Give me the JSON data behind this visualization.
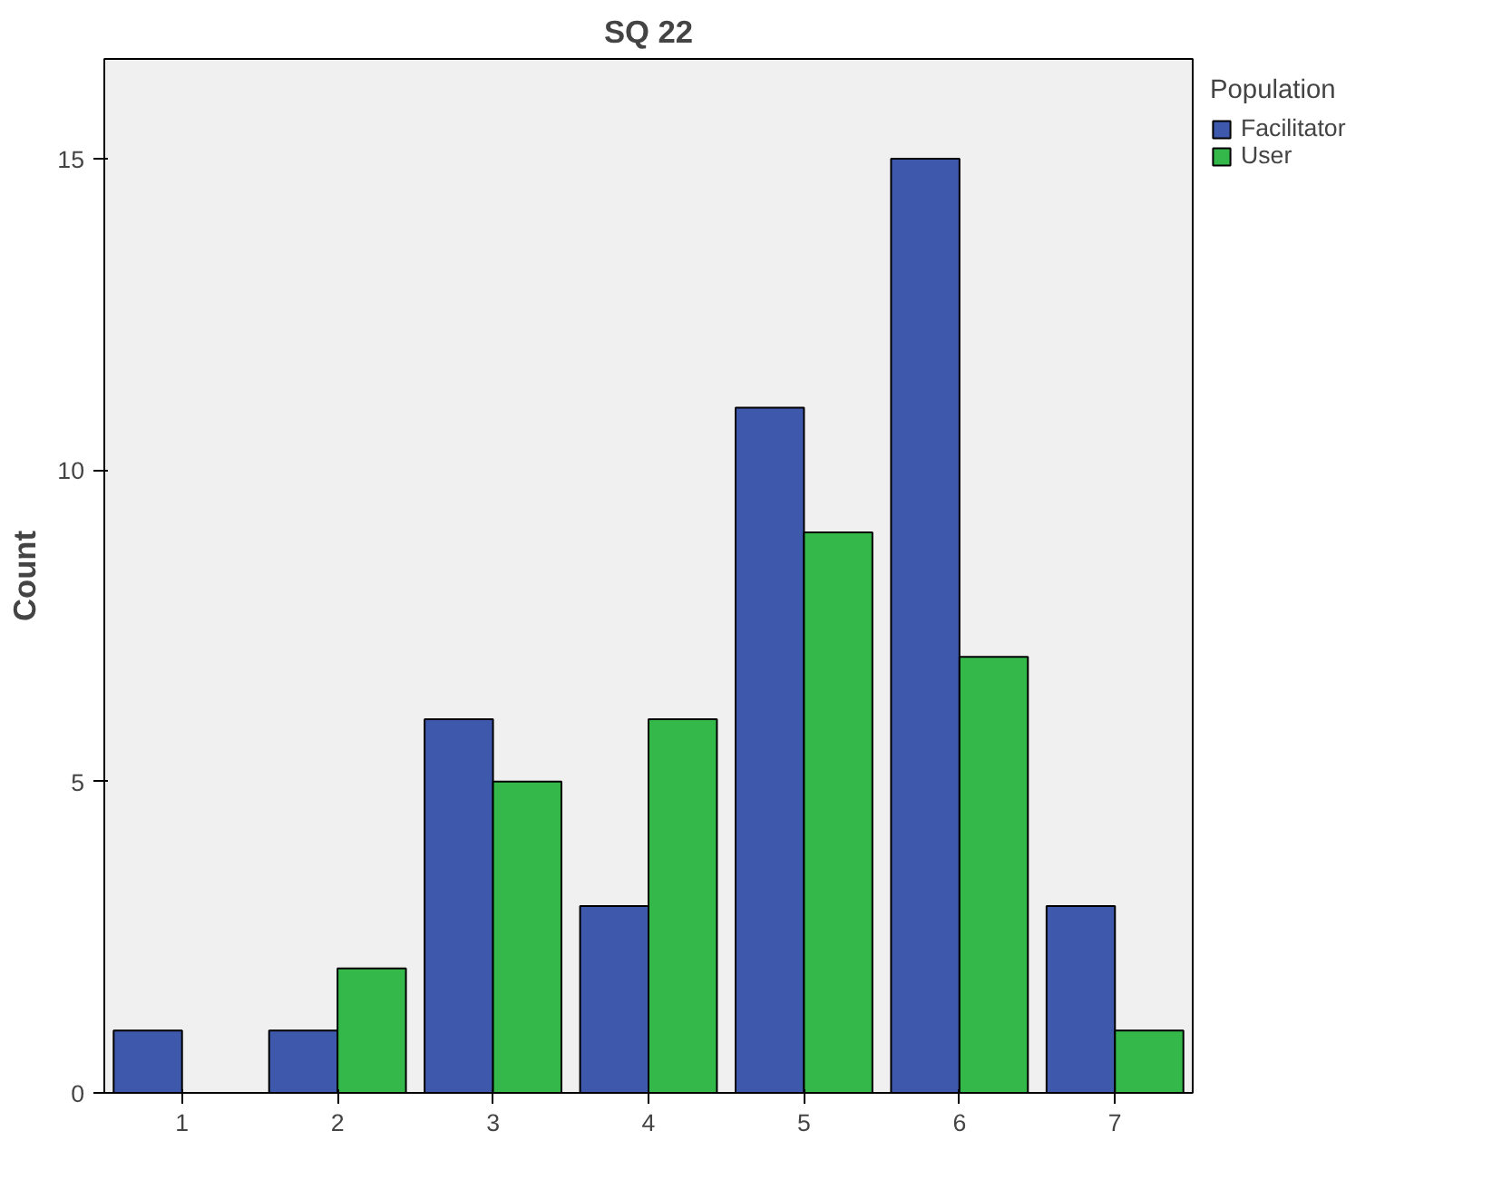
{
  "chart_data": {
    "type": "bar",
    "title": "SQ 22",
    "ylabel": "Count",
    "legend_title": "Population",
    "categories": [
      "1",
      "2",
      "3",
      "4",
      "5",
      "6",
      "7"
    ],
    "series": [
      {
        "name": "Facilitator",
        "color": "#3e58ac",
        "values": [
          1,
          1,
          6,
          3,
          11,
          15,
          3
        ]
      },
      {
        "name": "User",
        "color": "#34b84a",
        "values": [
          null,
          2,
          5,
          6,
          9,
          7,
          1
        ]
      }
    ],
    "ylim": [
      0,
      16.6
    ],
    "yticks": [
      0,
      5,
      10,
      15
    ],
    "grid": false,
    "legend": "right"
  }
}
